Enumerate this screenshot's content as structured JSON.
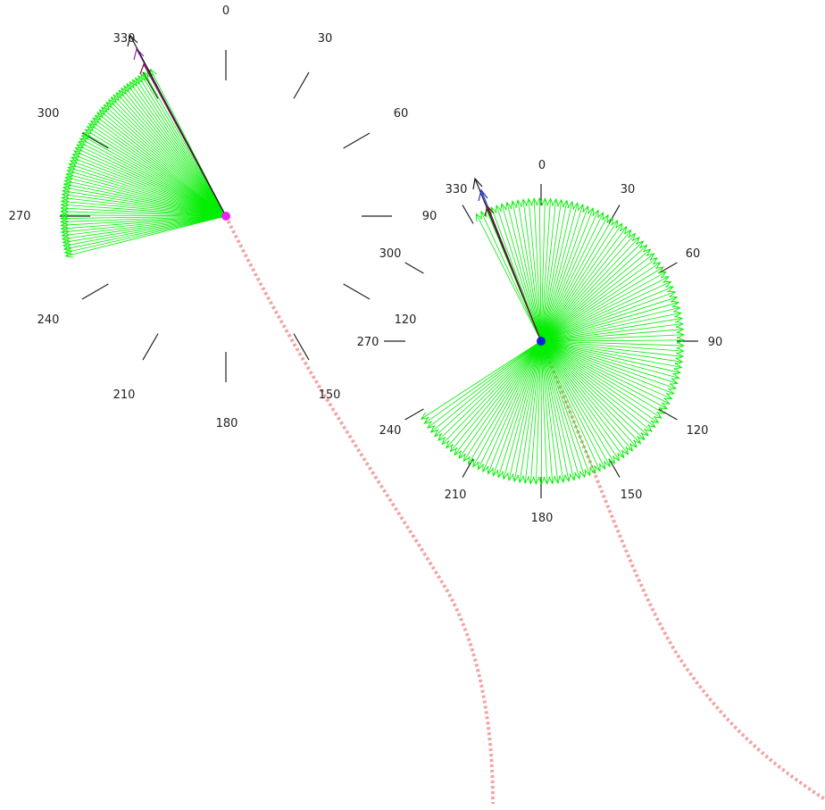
{
  "colors": {
    "background": "#ffffff",
    "fan": "#00ee00",
    "tick": "#222222",
    "path": "#f4a3a3",
    "left_center": "#ee22ee",
    "right_center": "#0a24d8",
    "heading_primary": "#7a0f2e",
    "heading_secondary": "#9b1fae",
    "heading_dark": "#1a1a1a",
    "heading_blue": "#1d2fd9"
  },
  "compasses": [
    {
      "id": "left",
      "labels": [
        "0",
        "30",
        "60",
        "90",
        "120",
        "150",
        "180",
        "210",
        "240",
        "270",
        "300",
        "330"
      ],
      "sweep": {
        "start_deg": 256,
        "end_deg": 333,
        "step_deg": 1.2
      },
      "center_marker": "magenta",
      "heading_icons": [
        "arrow-primary",
        "arrow-secondary",
        "arrow-dark"
      ]
    },
    {
      "id": "right",
      "labels": [
        "0",
        "30",
        "60",
        "90",
        "120",
        "150",
        "180",
        "210",
        "240",
        "270",
        "300",
        "330"
      ],
      "sweep": {
        "start_deg": 333,
        "end_deg": 597,
        "step_deg": 2.2
      },
      "center_marker": "blue",
      "heading_icons": [
        "arrow-dark",
        "arrow-blue",
        "arrow-primary"
      ]
    }
  ],
  "trajectories": [
    {
      "id": "left-path"
    },
    {
      "id": "right-path"
    }
  ]
}
